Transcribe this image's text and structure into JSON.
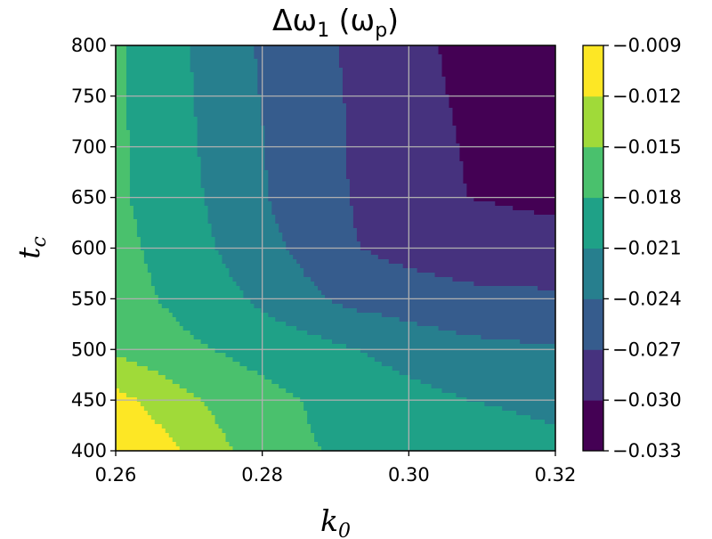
{
  "chart_data": {
    "type": "heatmap",
    "style": "filled-contour",
    "colormap": "viridis",
    "title": "Δω₁ (ωₚ)",
    "title_parts": {
      "main": "Δω",
      "main_sub": "1",
      "unit_open": " (ω",
      "unit_sub": "p",
      "unit_close": ")"
    },
    "xlabel": "k₀",
    "xlabel_parts": {
      "main": "k",
      "sub": "0"
    },
    "ylabel": "t_c",
    "ylabel_parts": {
      "main": "t",
      "sub": "c"
    },
    "xlim": [
      0.26,
      0.32
    ],
    "ylim": [
      400,
      800
    ],
    "x_ticks": [
      0.26,
      0.28,
      0.3,
      0.32
    ],
    "x_tick_labels": [
      "0.26",
      "0.28",
      "0.30",
      "0.32"
    ],
    "y_ticks": [
      400,
      450,
      500,
      550,
      600,
      650,
      700,
      750,
      800
    ],
    "y_tick_labels": [
      "400",
      "450",
      "500",
      "550",
      "600",
      "650",
      "700",
      "750",
      "800"
    ],
    "grid": true,
    "x": [
      0.26,
      0.268,
      0.276,
      0.284,
      0.292,
      0.3,
      0.308,
      0.32
    ],
    "y": [
      400,
      450,
      500,
      550,
      600,
      650,
      700,
      750,
      800
    ],
    "z": [
      [
        -0.009,
        -0.0115,
        -0.015,
        -0.0175,
        -0.0185,
        -0.0195,
        -0.0205,
        -0.0208
      ],
      [
        -0.011,
        -0.0138,
        -0.0165,
        -0.0178,
        -0.019,
        -0.02,
        -0.021,
        -0.0212
      ],
      [
        -0.0155,
        -0.0172,
        -0.0184,
        -0.0195,
        -0.0208,
        -0.0222,
        -0.0232,
        -0.0238
      ],
      [
        -0.0168,
        -0.0185,
        -0.0205,
        -0.0228,
        -0.0248,
        -0.0255,
        -0.0262,
        -0.0265
      ],
      [
        -0.0172,
        -0.019,
        -0.0218,
        -0.0242,
        -0.0268,
        -0.028,
        -0.0288,
        -0.0292
      ],
      [
        -0.0175,
        -0.0195,
        -0.0225,
        -0.025,
        -0.027,
        -0.0287,
        -0.03,
        -0.0305
      ],
      [
        -0.0175,
        -0.0198,
        -0.0228,
        -0.025,
        -0.0272,
        -0.0288,
        -0.0302,
        -0.031
      ],
      [
        -0.0175,
        -0.02,
        -0.023,
        -0.0252,
        -0.0272,
        -0.029,
        -0.0305,
        -0.0312
      ],
      [
        -0.0175,
        -0.0202,
        -0.0232,
        -0.0254,
        -0.0274,
        -0.0292,
        -0.0308,
        -0.0314
      ]
    ],
    "colorbar": {
      "levels": [
        -0.033,
        -0.03,
        -0.027,
        -0.024,
        -0.021,
        -0.018,
        -0.015,
        -0.012,
        -0.009
      ],
      "tick_labels": [
        "−0.033",
        "−0.030",
        "−0.027",
        "−0.024",
        "−0.021",
        "−0.018",
        "−0.015",
        "−0.012",
        "−0.009"
      ],
      "colors": [
        "#440154",
        "#46327e",
        "#365c8d",
        "#277f8e",
        "#1fa187",
        "#4ac16d",
        "#a0da39",
        "#fde725"
      ]
    }
  }
}
